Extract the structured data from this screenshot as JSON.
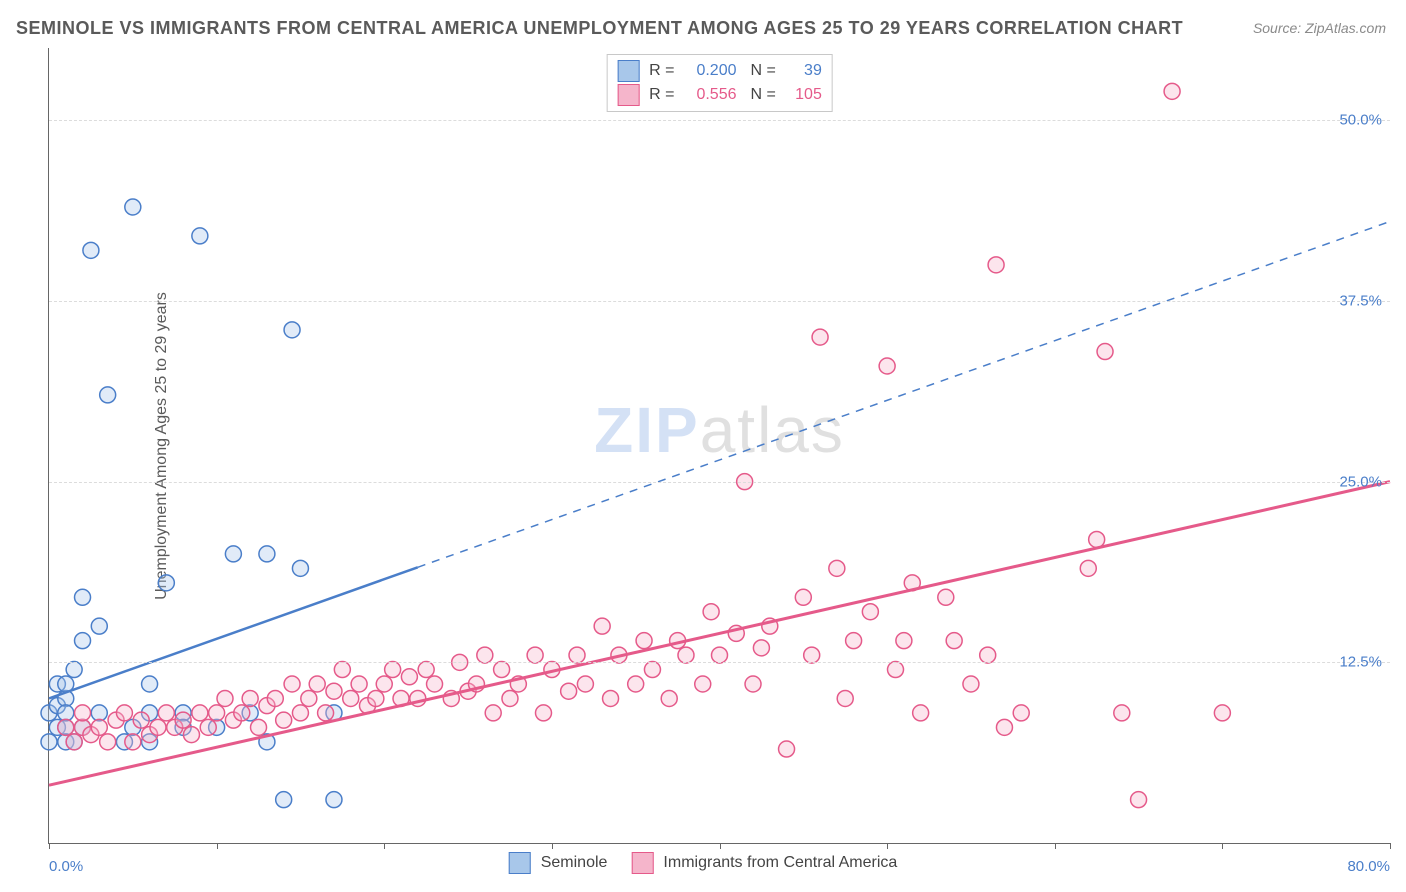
{
  "title": "SEMINOLE VS IMMIGRANTS FROM CENTRAL AMERICA UNEMPLOYMENT AMONG AGES 25 TO 29 YEARS CORRELATION CHART",
  "source": "Source: ZipAtlas.com",
  "ylabel": "Unemployment Among Ages 25 to 29 years",
  "watermark_a": "ZIP",
  "watermark_b": "atlas",
  "chart": {
    "type": "scatter-with-regression",
    "background_color": "#ffffff",
    "grid_color": "#dcdcdc",
    "axis_color": "#666666",
    "title_fontsize": 18,
    "title_color": "#5a5a5a",
    "label_fontsize": 16,
    "tick_color": "#4a7ec9",
    "xlim": [
      0,
      80
    ],
    "ylim": [
      0,
      55
    ],
    "xticks_minor": [
      0,
      10,
      20,
      30,
      40,
      50,
      60,
      70,
      80
    ],
    "xtick_labels": {
      "min": "0.0%",
      "max": "80.0%"
    },
    "ytick_positions": [
      12.5,
      25.0,
      37.5,
      50.0
    ],
    "ytick_labels": [
      "12.5%",
      "25.0%",
      "37.5%",
      "50.0%"
    ],
    "marker_radius": 8,
    "marker_stroke_width": 1.5,
    "marker_fill_opacity": 0.35,
    "series": [
      {
        "name": "Seminole",
        "stroke": "#4a7ec9",
        "fill": "#a8c7ea",
        "R": "0.200",
        "N": "39",
        "regression": {
          "x1": 0,
          "y1": 10,
          "x2": 80,
          "y2": 43,
          "solid_until_x": 22,
          "width": 2.5
        },
        "points": [
          [
            0,
            7
          ],
          [
            0,
            9
          ],
          [
            0.5,
            8
          ],
          [
            0.5,
            9.5
          ],
          [
            0.5,
            11
          ],
          [
            1,
            8
          ],
          [
            1,
            7
          ],
          [
            1,
            10
          ],
          [
            1,
            11
          ],
          [
            1,
            9
          ],
          [
            1.5,
            12
          ],
          [
            1.5,
            7
          ],
          [
            2,
            8
          ],
          [
            2,
            14
          ],
          [
            2,
            17
          ],
          [
            2.5,
            41
          ],
          [
            3,
            9
          ],
          [
            3,
            15
          ],
          [
            3.5,
            31
          ],
          [
            4.5,
            7
          ],
          [
            5,
            44
          ],
          [
            5,
            8
          ],
          [
            6,
            9
          ],
          [
            6,
            11
          ],
          [
            6,
            7
          ],
          [
            7,
            18
          ],
          [
            8,
            9
          ],
          [
            8,
            8
          ],
          [
            9,
            42
          ],
          [
            10,
            8
          ],
          [
            11,
            20
          ],
          [
            12,
            9
          ],
          [
            13,
            7
          ],
          [
            13,
            20
          ],
          [
            14,
            3
          ],
          [
            14.5,
            35.5
          ],
          [
            15,
            19
          ],
          [
            17,
            3
          ],
          [
            17,
            9
          ]
        ]
      },
      {
        "name": "Immigrants from Central America",
        "stroke": "#e55a8a",
        "fill": "#f5b5cb",
        "R": "0.556",
        "N": "105",
        "regression": {
          "x1": 0,
          "y1": 4,
          "x2": 80,
          "y2": 25,
          "solid_until_x": 80,
          "width": 3
        },
        "points": [
          [
            1,
            8
          ],
          [
            1.5,
            7
          ],
          [
            2,
            8
          ],
          [
            2,
            9
          ],
          [
            2.5,
            7.5
          ],
          [
            3,
            8
          ],
          [
            3.5,
            7
          ],
          [
            4,
            8.5
          ],
          [
            4.5,
            9
          ],
          [
            5,
            7
          ],
          [
            5.5,
            8.5
          ],
          [
            6,
            7.5
          ],
          [
            6.5,
            8
          ],
          [
            7,
            9
          ],
          [
            7.5,
            8
          ],
          [
            8,
            8.5
          ],
          [
            8.5,
            7.5
          ],
          [
            9,
            9
          ],
          [
            9.5,
            8
          ],
          [
            10,
            9
          ],
          [
            10.5,
            10
          ],
          [
            11,
            8.5
          ],
          [
            11.5,
            9
          ],
          [
            12,
            10
          ],
          [
            12.5,
            8
          ],
          [
            13,
            9.5
          ],
          [
            13.5,
            10
          ],
          [
            14,
            8.5
          ],
          [
            14.5,
            11
          ],
          [
            15,
            9
          ],
          [
            15.5,
            10
          ],
          [
            16,
            11
          ],
          [
            16.5,
            9
          ],
          [
            17,
            10.5
          ],
          [
            17.5,
            12
          ],
          [
            18,
            10
          ],
          [
            18.5,
            11
          ],
          [
            19,
            9.5
          ],
          [
            19.5,
            10
          ],
          [
            20,
            11
          ],
          [
            20.5,
            12
          ],
          [
            21,
            10
          ],
          [
            21.5,
            11.5
          ],
          [
            22,
            10
          ],
          [
            22.5,
            12
          ],
          [
            23,
            11
          ],
          [
            24,
            10
          ],
          [
            24.5,
            12.5
          ],
          [
            25,
            10.5
          ],
          [
            25.5,
            11
          ],
          [
            26,
            13
          ],
          [
            26.5,
            9
          ],
          [
            27,
            12
          ],
          [
            27.5,
            10
          ],
          [
            28,
            11
          ],
          [
            29,
            13
          ],
          [
            29.5,
            9
          ],
          [
            30,
            12
          ],
          [
            31,
            10.5
          ],
          [
            31.5,
            13
          ],
          [
            32,
            11
          ],
          [
            33,
            15
          ],
          [
            33.5,
            10
          ],
          [
            34,
            13
          ],
          [
            35,
            11
          ],
          [
            35.5,
            14
          ],
          [
            36,
            12
          ],
          [
            37,
            10
          ],
          [
            37.5,
            14
          ],
          [
            38,
            13
          ],
          [
            39,
            11
          ],
          [
            39.5,
            16
          ],
          [
            40,
            13
          ],
          [
            41,
            14.5
          ],
          [
            41.5,
            25
          ],
          [
            42,
            11
          ],
          [
            42.5,
            13.5
          ],
          [
            43,
            15
          ],
          [
            44,
            6.5
          ],
          [
            45,
            17
          ],
          [
            45.5,
            13
          ],
          [
            46,
            35
          ],
          [
            47,
            19
          ],
          [
            47.5,
            10
          ],
          [
            48,
            14
          ],
          [
            49,
            16
          ],
          [
            50,
            33
          ],
          [
            50.5,
            12
          ],
          [
            51,
            14
          ],
          [
            51.5,
            18
          ],
          [
            52,
            9
          ],
          [
            53.5,
            17
          ],
          [
            54,
            14
          ],
          [
            55,
            11
          ],
          [
            56,
            13
          ],
          [
            56.5,
            40
          ],
          [
            57,
            8
          ],
          [
            58,
            9
          ],
          [
            62,
            19
          ],
          [
            62.5,
            21
          ],
          [
            63,
            34
          ],
          [
            64,
            9
          ],
          [
            65,
            3
          ],
          [
            67,
            52
          ],
          [
            70,
            9
          ]
        ]
      }
    ],
    "bottom_legend": [
      {
        "label": "Seminole",
        "stroke": "#4a7ec9",
        "fill": "#a8c7ea"
      },
      {
        "label": "Immigrants from Central America",
        "stroke": "#e55a8a",
        "fill": "#f5b5cb"
      }
    ]
  }
}
